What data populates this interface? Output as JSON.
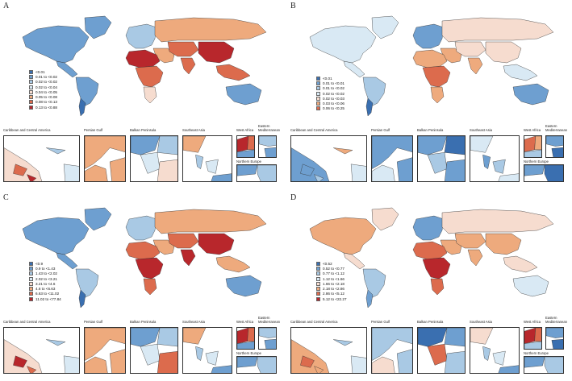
{
  "region_labels": {
    "caribbean": "Caribbean and Central America",
    "persian_gulf": "Persian Gulf",
    "balkan": "Balkan Peninsula",
    "se_asia": "Southeast Asia",
    "west_africa": "West Africa",
    "east_med": "Eastern Mediterranean",
    "north_europe": "Northern Europe"
  },
  "panels": [
    {
      "letter": "A",
      "legend": [
        "<0.01",
        "0.01 to <0.02",
        "0.02 to <0.02",
        "0.02 to <0.04",
        "0.04 to <0.05",
        "0.05 to <0.08",
        "0.08 to <0.13",
        "0.13 to <0.88"
      ],
      "colors": [
        "#3a6fb0",
        "#6e9fd0",
        "#a9c9e4",
        "#d9e9f4",
        "#f6dccf",
        "#eeaa7d",
        "#dc6b4d",
        "#b8272c"
      ],
      "regions": {
        "na": 1,
        "gl": 1,
        "ca": 1,
        "sa": 1,
        "sa_s": 0,
        "eu": 2,
        "ru": 5,
        "me": 5,
        "af_n": 7,
        "af_c": 6,
        "af_s": 4,
        "asia_c": 6,
        "in": 6,
        "cn": 7,
        "sea": 6,
        "au": 1
      },
      "insets": {
        "caribbean": [
          4,
          6,
          2,
          7,
          3
        ],
        "persian_gulf": [
          5,
          5,
          5
        ],
        "balkan": [
          1,
          2,
          3,
          4
        ],
        "se_asia": [
          5,
          2,
          3,
          1
        ],
        "west_africa": [
          7,
          6,
          1
        ],
        "east_med": [
          2,
          1
        ],
        "north_europe": [
          1,
          2
        ]
      }
    },
    {
      "letter": "B",
      "legend": [
        "<0.01",
        "0.01 to <0.01",
        "0.01 to <0.02",
        "0.02 to <0.02",
        "0.02 to <0.03",
        "0.03 to <0.06",
        "0.06 to <0.25"
      ],
      "colors": [
        "#3a6fb0",
        "#6e9fd0",
        "#a9c9e4",
        "#d9e9f4",
        "#f6dccf",
        "#eeaa7d",
        "#dc6b4d"
      ],
      "regions": {
        "na": 3,
        "gl": 3,
        "ca": 3,
        "sa": 2,
        "sa_s": 0,
        "eu": 1,
        "ru": 4,
        "me": 5,
        "af_n": 5,
        "af_c": 6,
        "af_s": 5,
        "asia_c": 4,
        "in": 5,
        "cn": 4,
        "sea": 3,
        "au": 1
      },
      "insets": {
        "caribbean": [
          1,
          1,
          5,
          2,
          3
        ],
        "persian_gulf": [
          1,
          3,
          1
        ],
        "balkan": [
          1,
          0,
          2,
          1
        ],
        "se_asia": [
          3,
          1,
          2,
          3
        ],
        "west_africa": [
          6,
          5,
          2
        ],
        "east_med": [
          1,
          0
        ],
        "north_europe": [
          1,
          0
        ]
      }
    },
    {
      "letter": "C",
      "legend": [
        "<0.9",
        "0.9 to <1.43",
        "1.43 to <2.02",
        "2.02 to <3.21",
        "3.21 to <4.6",
        "4.6 to <6.63",
        "6.63 to <11.02",
        "11.02 to <77.84"
      ],
      "colors": [
        "#3a6fb0",
        "#6e9fd0",
        "#a9c9e4",
        "#d9e9f4",
        "#f6dccf",
        "#eeaa7d",
        "#dc6b4d",
        "#b8272c"
      ],
      "regions": {
        "na": 1,
        "gl": 1,
        "ca": 1,
        "sa": 2,
        "sa_s": 0,
        "eu": 2,
        "ru": 5,
        "me": 5,
        "af_n": 6,
        "af_c": 7,
        "af_s": 6,
        "asia_c": 6,
        "in": 7,
        "cn": 7,
        "sea": 5,
        "au": 1
      },
      "insets": {
        "caribbean": [
          4,
          7,
          2,
          6,
          3
        ],
        "persian_gulf": [
          5,
          5,
          5
        ],
        "balkan": [
          1,
          2,
          3,
          6
        ],
        "se_asia": [
          5,
          2,
          3,
          1
        ],
        "west_africa": [
          7,
          6,
          1
        ],
        "east_med": [
          2,
          1
        ],
        "north_europe": [
          1,
          2
        ]
      }
    },
    {
      "letter": "D",
      "legend": [
        "<0.52",
        "0.52 to <0.77",
        "0.77 to <1.12",
        "1.12 to <1.66",
        "1.66 to <2.18",
        "2.18 to <2.86",
        "2.86 to <5.12",
        "5.12 to <22.27"
      ],
      "colors": [
        "#3a6fb0",
        "#6e9fd0",
        "#a9c9e4",
        "#d9e9f4",
        "#f6dccf",
        "#eeaa7d",
        "#dc6b4d",
        "#b8272c"
      ],
      "regions": {
        "na": 5,
        "gl": 4,
        "ca": 4,
        "sa": 2,
        "sa_s": 1,
        "eu": 1,
        "ru": 4,
        "me": 5,
        "af_n": 6,
        "af_c": 7,
        "af_s": 6,
        "asia_c": 5,
        "in": 5,
        "cn": 5,
        "sea": 4,
        "au": 3
      },
      "insets": {
        "caribbean": [
          5,
          6,
          2,
          5,
          3
        ],
        "persian_gulf": [
          2,
          4,
          2
        ],
        "balkan": [
          0,
          1,
          6,
          2
        ],
        "se_asia": [
          4,
          2,
          3,
          1
        ],
        "west_africa": [
          7,
          6,
          2
        ],
        "east_med": [
          1,
          0
        ],
        "north_europe": [
          1,
          2
        ]
      }
    }
  ]
}
